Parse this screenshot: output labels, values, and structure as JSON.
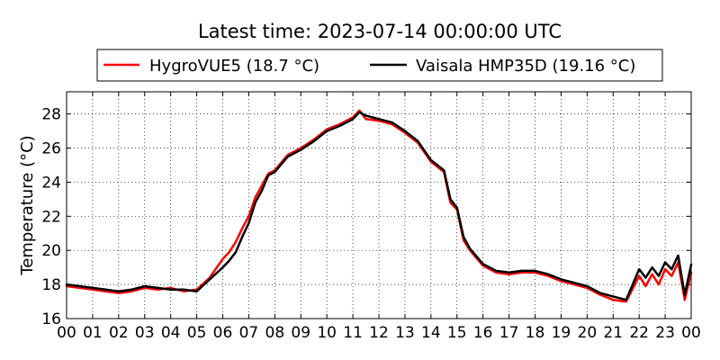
{
  "chart_data": {
    "type": "line",
    "title": "Latest time: 2023-07-14 00:00:00 UTC",
    "xlabel": "",
    "ylabel": "Temperature (°C)",
    "xlim": [
      0,
      24
    ],
    "ylim": [
      16,
      29.3
    ],
    "x_ticks": [
      0,
      1,
      2,
      3,
      4,
      5,
      6,
      7,
      8,
      9,
      10,
      11,
      12,
      13,
      14,
      15,
      16,
      17,
      18,
      19,
      20,
      21,
      22,
      23,
      24
    ],
    "x_tick_labels": [
      "00",
      "01",
      "02",
      "03",
      "04",
      "05",
      "06",
      "07",
      "08",
      "09",
      "10",
      "11",
      "12",
      "13",
      "14",
      "15",
      "16",
      "17",
      "18",
      "19",
      "20",
      "21",
      "22",
      "23",
      "00"
    ],
    "y_ticks": [
      16,
      18,
      20,
      22,
      24,
      26,
      28
    ],
    "y_tick_labels": [
      "16",
      "18",
      "20",
      "22",
      "24",
      "26",
      "28"
    ],
    "grid": true,
    "legend_position": "top",
    "series": [
      {
        "name": "HygroVUE5 (18.7 °C)",
        "color": "#ff0000",
        "x": [
          0,
          0.5,
          1,
          1.5,
          2,
          2.5,
          3,
          3.5,
          4,
          4.5,
          5,
          5.5,
          6,
          6.25,
          6.5,
          6.75,
          7,
          7.25,
          7.5,
          7.75,
          8,
          8.5,
          9,
          9.5,
          10,
          10.5,
          11,
          11.25,
          11.5,
          12,
          12.5,
          13,
          13.5,
          14,
          14.5,
          14.75,
          15,
          15.25,
          15.5,
          16,
          16.5,
          17,
          17.5,
          18,
          18.5,
          19,
          19.5,
          20,
          20.5,
          21,
          21.5,
          22,
          22.25,
          22.5,
          22.75,
          23,
          23.25,
          23.5,
          23.75,
          24
        ],
        "y": [
          17.9,
          17.8,
          17.7,
          17.6,
          17.5,
          17.6,
          17.8,
          17.7,
          17.8,
          17.6,
          17.7,
          18.4,
          19.5,
          19.9,
          20.5,
          21.3,
          22.0,
          23.1,
          23.8,
          24.5,
          24.7,
          25.6,
          26.0,
          26.5,
          27.1,
          27.4,
          27.8,
          28.2,
          27.7,
          27.6,
          27.4,
          26.9,
          26.3,
          25.2,
          24.6,
          22.8,
          22.4,
          20.6,
          20.0,
          19.1,
          18.7,
          18.6,
          18.7,
          18.7,
          18.5,
          18.2,
          18.0,
          17.8,
          17.4,
          17.1,
          17.0,
          18.5,
          17.9,
          18.6,
          18.0,
          18.9,
          18.5,
          19.3,
          17.1,
          18.7
        ]
      },
      {
        "name": "Vaisala HMP35D (19.16 °C)",
        "color": "#000000",
        "x": [
          0,
          0.5,
          1,
          1.5,
          2,
          2.5,
          3,
          3.5,
          4,
          4.5,
          5,
          5.5,
          6,
          6.25,
          6.5,
          6.75,
          7,
          7.25,
          7.5,
          7.75,
          8,
          8.5,
          9,
          9.5,
          10,
          10.5,
          11,
          11.25,
          11.5,
          12,
          12.5,
          13,
          13.5,
          14,
          14.5,
          14.75,
          15,
          15.25,
          15.5,
          16,
          16.5,
          17,
          17.5,
          18,
          18.5,
          19,
          19.5,
          20,
          20.5,
          21,
          21.5,
          22,
          22.25,
          22.5,
          22.75,
          23,
          23.25,
          23.5,
          23.75,
          24
        ],
        "y": [
          18.0,
          17.9,
          17.8,
          17.7,
          17.6,
          17.7,
          17.9,
          17.8,
          17.7,
          17.7,
          17.6,
          18.3,
          19.0,
          19.4,
          19.9,
          20.8,
          21.6,
          22.8,
          23.5,
          24.4,
          24.6,
          25.5,
          25.9,
          26.4,
          27.0,
          27.3,
          27.7,
          28.1,
          27.9,
          27.7,
          27.5,
          27.0,
          26.4,
          25.3,
          24.7,
          23.0,
          22.5,
          20.8,
          20.1,
          19.2,
          18.8,
          18.7,
          18.8,
          18.8,
          18.6,
          18.3,
          18.1,
          17.9,
          17.5,
          17.3,
          17.1,
          18.9,
          18.4,
          19.0,
          18.5,
          19.3,
          18.9,
          19.7,
          17.4,
          19.16
        ]
      }
    ]
  }
}
